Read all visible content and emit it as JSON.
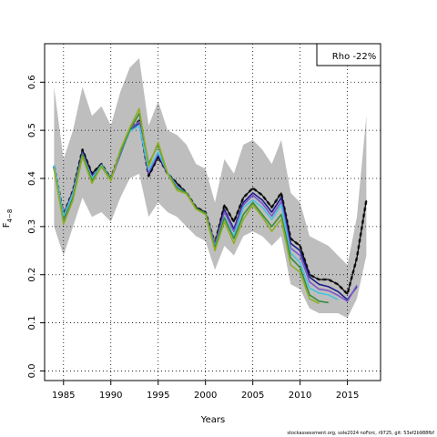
{
  "footer": "stockassessment.org, sole2024 noForc, r9725, git: 53ef2b988fbf",
  "chart_data": {
    "type": "line",
    "xlabel": "Years",
    "ylabel_main": "F",
    "ylabel_sub": "4−8",
    "xlim": [
      1983,
      2018.5
    ],
    "ylim": [
      -0.02,
      0.68
    ],
    "xticks": [
      1985,
      1990,
      1995,
      2000,
      2005,
      2010,
      2015
    ],
    "yticks": [
      0.0,
      0.1,
      0.2,
      0.3,
      0.4,
      0.5,
      0.6
    ],
    "ytick_labels": [
      "0.0",
      "0.1",
      "0.2",
      "0.3",
      "0.4",
      "0.5",
      "0.6"
    ],
    "grid": true,
    "annotation": "Rho -22%",
    "annotation_position": "top-right",
    "band": {
      "color": "#bebebe",
      "x": [
        1984,
        1985,
        1986,
        1987,
        1988,
        1989,
        1990,
        1991,
        1992,
        1993,
        1994,
        1995,
        1996,
        1997,
        1998,
        1999,
        2000,
        2001,
        2002,
        2003,
        2004,
        2005,
        2006,
        2007,
        2008,
        2009,
        2010,
        2011,
        2012,
        2013,
        2014,
        2015,
        2016,
        2017
      ],
      "upper": [
        0.59,
        0.44,
        0.5,
        0.59,
        0.53,
        0.55,
        0.51,
        0.58,
        0.63,
        0.65,
        0.51,
        0.56,
        0.5,
        0.49,
        0.47,
        0.43,
        0.42,
        0.35,
        0.44,
        0.41,
        0.47,
        0.48,
        0.46,
        0.43,
        0.48,
        0.37,
        0.35,
        0.28,
        0.27,
        0.26,
        0.24,
        0.22,
        0.32,
        0.53
      ],
      "lower": [
        0.3,
        0.24,
        0.3,
        0.36,
        0.32,
        0.33,
        0.31,
        0.36,
        0.4,
        0.41,
        0.32,
        0.35,
        0.33,
        0.32,
        0.3,
        0.28,
        0.27,
        0.21,
        0.26,
        0.24,
        0.28,
        0.29,
        0.28,
        0.26,
        0.28,
        0.18,
        0.17,
        0.13,
        0.12,
        0.12,
        0.12,
        0.11,
        0.15,
        0.24
      ]
    },
    "series": [
      {
        "color": "#333333",
        "style": "dashed",
        "width": 2.6,
        "x": [
          1984,
          1985,
          1986,
          1987,
          1988,
          1989,
          1990,
          1991,
          1992,
          1993,
          1994,
          1995,
          1996,
          1997,
          1998,
          1999,
          2000,
          2001,
          2002,
          2003,
          2004,
          2005,
          2006,
          2007,
          2008,
          2009,
          2010,
          2011,
          2012,
          2013,
          2014,
          2015,
          2016,
          2017
        ],
        "values": [
          0.425,
          0.325,
          0.375,
          0.46,
          0.41,
          0.43,
          0.4,
          0.455,
          0.5,
          0.52,
          0.405,
          0.445,
          0.41,
          0.39,
          0.37,
          0.34,
          0.33,
          0.265,
          0.345,
          0.31,
          0.36,
          0.38,
          0.365,
          0.34,
          0.37,
          0.275,
          0.26,
          0.2,
          0.19,
          0.19,
          0.18,
          0.16,
          0.235,
          0.355
        ]
      },
      {
        "color": "#000000",
        "style": "solid",
        "width": 1.2,
        "x": [
          1984,
          1985,
          1986,
          1987,
          1988,
          1989,
          1990,
          1991,
          1992,
          1993,
          1994,
          1995,
          1996,
          1997,
          1998,
          1999,
          2000,
          2001,
          2002,
          2003,
          2004,
          2005,
          2006,
          2007,
          2008,
          2009,
          2010,
          2011,
          2012,
          2013,
          2014,
          2015,
          2016,
          2017
        ],
        "values": [
          0.425,
          0.325,
          0.375,
          0.46,
          0.41,
          0.43,
          0.4,
          0.455,
          0.5,
          0.52,
          0.405,
          0.445,
          0.41,
          0.39,
          0.37,
          0.34,
          0.33,
          0.265,
          0.345,
          0.31,
          0.36,
          0.38,
          0.365,
          0.34,
          0.37,
          0.275,
          0.26,
          0.2,
          0.19,
          0.19,
          0.18,
          0.16,
          0.235,
          0.355
        ]
      },
      {
        "color": "#1c1c8c",
        "style": "solid",
        "width": 1.6,
        "x": [
          1984,
          1985,
          1986,
          1987,
          1988,
          1989,
          1990,
          1991,
          1992,
          1993,
          1994,
          1995,
          1996,
          1997,
          1998,
          1999,
          2000,
          2001,
          2002,
          2003,
          2004,
          2005,
          2006,
          2007,
          2008,
          2009,
          2010,
          2011,
          2012,
          2013,
          2014,
          2015,
          2016
        ],
        "values": [
          0.423,
          0.32,
          0.37,
          0.455,
          0.405,
          0.425,
          0.398,
          0.45,
          0.5,
          0.515,
          0.41,
          0.45,
          0.41,
          0.385,
          0.368,
          0.338,
          0.328,
          0.26,
          0.335,
          0.295,
          0.35,
          0.37,
          0.355,
          0.33,
          0.36,
          0.265,
          0.25,
          0.195,
          0.18,
          0.175,
          0.165,
          0.148,
          0.175
        ]
      },
      {
        "color": "#7b58c8",
        "style": "solid",
        "width": 1.6,
        "x": [
          1984,
          1985,
          1986,
          1987,
          1988,
          1989,
          1990,
          1991,
          1992,
          1993,
          1994,
          1995,
          1996,
          1997,
          1998,
          1999,
          2000,
          2001,
          2002,
          2003,
          2004,
          2005,
          2006,
          2007,
          2008,
          2009,
          2010,
          2011,
          2012,
          2013,
          2014,
          2015,
          2016
        ],
        "values": [
          0.425,
          0.322,
          0.372,
          0.452,
          0.403,
          0.424,
          0.397,
          0.452,
          0.502,
          0.518,
          0.412,
          0.452,
          0.41,
          0.385,
          0.368,
          0.337,
          0.328,
          0.262,
          0.33,
          0.29,
          0.345,
          0.365,
          0.348,
          0.322,
          0.352,
          0.255,
          0.24,
          0.185,
          0.17,
          0.167,
          0.157,
          0.145,
          0.178
        ]
      },
      {
        "color": "#47c3e0",
        "style": "solid",
        "width": 1.6,
        "x": [
          1984,
          1985,
          1986,
          1987,
          1988,
          1989,
          1990,
          1991,
          1992,
          1993,
          1994,
          1995,
          1996,
          1997,
          1998,
          1999,
          2000,
          2001,
          2002,
          2003,
          2004,
          2005,
          2006,
          2007,
          2008,
          2009,
          2010,
          2011,
          2012,
          2013,
          2014
        ],
        "values": [
          0.428,
          0.322,
          0.368,
          0.45,
          0.4,
          0.428,
          0.4,
          0.453,
          0.498,
          0.51,
          0.418,
          0.455,
          0.412,
          0.382,
          0.37,
          0.338,
          0.328,
          0.258,
          0.32,
          0.28,
          0.34,
          0.355,
          0.34,
          0.315,
          0.345,
          0.245,
          0.225,
          0.172,
          0.162,
          0.158,
          0.148
        ]
      },
      {
        "color": "#3a8c3a",
        "style": "solid",
        "width": 1.6,
        "x": [
          1984,
          1985,
          1986,
          1987,
          1988,
          1989,
          1990,
          1991,
          1992,
          1993,
          1994,
          1995,
          1996,
          1997,
          1998,
          1999,
          2000,
          2001,
          2002,
          2003,
          2004,
          2005,
          2006,
          2007,
          2008,
          2009,
          2010,
          2011,
          2012,
          2013
        ],
        "values": [
          0.42,
          0.31,
          0.36,
          0.45,
          0.395,
          0.425,
          0.4,
          0.455,
          0.5,
          0.535,
          0.43,
          0.47,
          0.41,
          0.38,
          0.37,
          0.338,
          0.328,
          0.255,
          0.318,
          0.275,
          0.325,
          0.35,
          0.325,
          0.3,
          0.325,
          0.235,
          0.215,
          0.158,
          0.145,
          0.142
        ]
      },
      {
        "color": "#8fae26",
        "style": "solid",
        "width": 1.6,
        "x": [
          1984,
          1985,
          1986,
          1987,
          1988,
          1989,
          1990,
          1991,
          1992,
          1993,
          1994,
          1995,
          1996,
          1997,
          1998,
          1999,
          2000,
          2001,
          2002,
          2003,
          2004,
          2005,
          2006,
          2007,
          2008,
          2009,
          2010,
          2011,
          2012
        ],
        "values": [
          0.42,
          0.305,
          0.355,
          0.445,
          0.39,
          0.425,
          0.395,
          0.46,
          0.505,
          0.545,
          0.425,
          0.475,
          0.41,
          0.375,
          0.368,
          0.336,
          0.325,
          0.25,
          0.31,
          0.265,
          0.315,
          0.345,
          0.32,
          0.29,
          0.315,
          0.22,
          0.205,
          0.15,
          0.14
        ]
      }
    ]
  }
}
